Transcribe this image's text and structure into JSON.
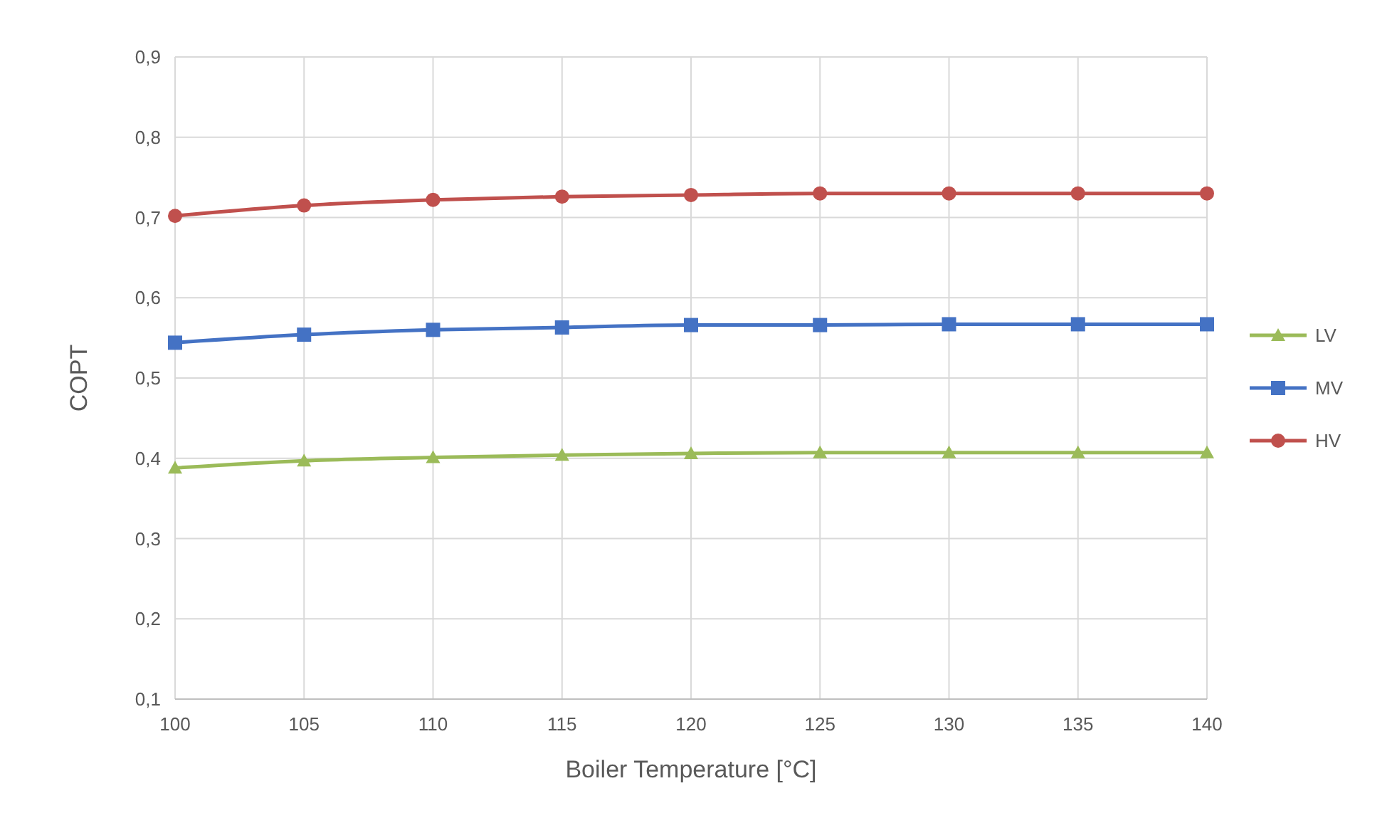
{
  "chart_data": {
    "type": "line",
    "xlabel": "Boiler Temperature [°C]",
    "ylabel": "COPT",
    "x": [
      100,
      105,
      110,
      115,
      120,
      125,
      130,
      135,
      140
    ],
    "series": [
      {
        "name": "LV",
        "color": "#9bbb59",
        "marker": "triangle",
        "values": [
          0.388,
          0.397,
          0.401,
          0.404,
          0.406,
          0.407,
          0.407,
          0.407,
          0.407
        ]
      },
      {
        "name": "MV",
        "color": "#4472c4",
        "marker": "square",
        "values": [
          0.544,
          0.554,
          0.56,
          0.563,
          0.566,
          0.566,
          0.567,
          0.567,
          0.567
        ]
      },
      {
        "name": "HV",
        "color": "#c0504d",
        "marker": "circle",
        "values": [
          0.702,
          0.715,
          0.722,
          0.726,
          0.728,
          0.73,
          0.73,
          0.73,
          0.73
        ]
      }
    ],
    "xlim": [
      100,
      140
    ],
    "xticks": [
      100,
      105,
      110,
      115,
      120,
      125,
      130,
      135,
      140
    ],
    "ylim": [
      0.1,
      0.9
    ],
    "yticks": [
      {
        "value": 0.1,
        "label": "0,1"
      },
      {
        "value": 0.2,
        "label": "0,2"
      },
      {
        "value": 0.3,
        "label": "0,3"
      },
      {
        "value": 0.4,
        "label": "0,4"
      },
      {
        "value": 0.5,
        "label": "0,5"
      },
      {
        "value": 0.6,
        "label": "0,6"
      },
      {
        "value": 0.7,
        "label": "0,7"
      },
      {
        "value": 0.8,
        "label": "0,8"
      },
      {
        "value": 0.9,
        "label": "0,9"
      }
    ],
    "grid": true,
    "legend": "right",
    "line_style": "solid"
  }
}
